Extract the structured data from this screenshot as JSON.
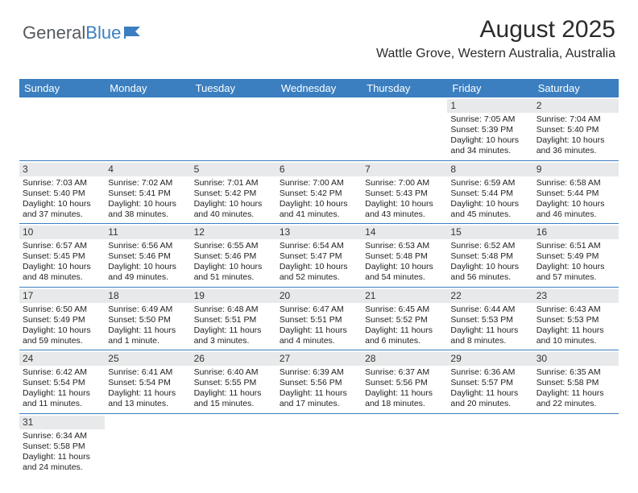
{
  "logo": {
    "part1": "General",
    "part2": "Blue"
  },
  "title": "August 2025",
  "location": "Wattle Grove, Western Australia, Australia",
  "colors": {
    "header_bar": "#3b7fc0",
    "daynum_band": "#e8e9ea",
    "row_divider": "#3b7fc0",
    "text": "#222222",
    "logo_gray": "#555b60",
    "logo_blue": "#3b7fc0",
    "background": "#ffffff"
  },
  "typography": {
    "title_size_pt": 22,
    "location_size_pt": 12,
    "dayhead_size_pt": 10,
    "cell_size_pt": 8
  },
  "day_headers": [
    "Sunday",
    "Monday",
    "Tuesday",
    "Wednesday",
    "Thursday",
    "Friday",
    "Saturday"
  ],
  "weeks": [
    [
      {
        "n": "",
        "sr": "",
        "ss": "",
        "dl1": "",
        "dl2": ""
      },
      {
        "n": "",
        "sr": "",
        "ss": "",
        "dl1": "",
        "dl2": ""
      },
      {
        "n": "",
        "sr": "",
        "ss": "",
        "dl1": "",
        "dl2": ""
      },
      {
        "n": "",
        "sr": "",
        "ss": "",
        "dl1": "",
        "dl2": ""
      },
      {
        "n": "",
        "sr": "",
        "ss": "",
        "dl1": "",
        "dl2": ""
      },
      {
        "n": "1",
        "sr": "Sunrise: 7:05 AM",
        "ss": "Sunset: 5:39 PM",
        "dl1": "Daylight: 10 hours",
        "dl2": "and 34 minutes."
      },
      {
        "n": "2",
        "sr": "Sunrise: 7:04 AM",
        "ss": "Sunset: 5:40 PM",
        "dl1": "Daylight: 10 hours",
        "dl2": "and 36 minutes."
      }
    ],
    [
      {
        "n": "3",
        "sr": "Sunrise: 7:03 AM",
        "ss": "Sunset: 5:40 PM",
        "dl1": "Daylight: 10 hours",
        "dl2": "and 37 minutes."
      },
      {
        "n": "4",
        "sr": "Sunrise: 7:02 AM",
        "ss": "Sunset: 5:41 PM",
        "dl1": "Daylight: 10 hours",
        "dl2": "and 38 minutes."
      },
      {
        "n": "5",
        "sr": "Sunrise: 7:01 AM",
        "ss": "Sunset: 5:42 PM",
        "dl1": "Daylight: 10 hours",
        "dl2": "and 40 minutes."
      },
      {
        "n": "6",
        "sr": "Sunrise: 7:00 AM",
        "ss": "Sunset: 5:42 PM",
        "dl1": "Daylight: 10 hours",
        "dl2": "and 41 minutes."
      },
      {
        "n": "7",
        "sr": "Sunrise: 7:00 AM",
        "ss": "Sunset: 5:43 PM",
        "dl1": "Daylight: 10 hours",
        "dl2": "and 43 minutes."
      },
      {
        "n": "8",
        "sr": "Sunrise: 6:59 AM",
        "ss": "Sunset: 5:44 PM",
        "dl1": "Daylight: 10 hours",
        "dl2": "and 45 minutes."
      },
      {
        "n": "9",
        "sr": "Sunrise: 6:58 AM",
        "ss": "Sunset: 5:44 PM",
        "dl1": "Daylight: 10 hours",
        "dl2": "and 46 minutes."
      }
    ],
    [
      {
        "n": "10",
        "sr": "Sunrise: 6:57 AM",
        "ss": "Sunset: 5:45 PM",
        "dl1": "Daylight: 10 hours",
        "dl2": "and 48 minutes."
      },
      {
        "n": "11",
        "sr": "Sunrise: 6:56 AM",
        "ss": "Sunset: 5:46 PM",
        "dl1": "Daylight: 10 hours",
        "dl2": "and 49 minutes."
      },
      {
        "n": "12",
        "sr": "Sunrise: 6:55 AM",
        "ss": "Sunset: 5:46 PM",
        "dl1": "Daylight: 10 hours",
        "dl2": "and 51 minutes."
      },
      {
        "n": "13",
        "sr": "Sunrise: 6:54 AM",
        "ss": "Sunset: 5:47 PM",
        "dl1": "Daylight: 10 hours",
        "dl2": "and 52 minutes."
      },
      {
        "n": "14",
        "sr": "Sunrise: 6:53 AM",
        "ss": "Sunset: 5:48 PM",
        "dl1": "Daylight: 10 hours",
        "dl2": "and 54 minutes."
      },
      {
        "n": "15",
        "sr": "Sunrise: 6:52 AM",
        "ss": "Sunset: 5:48 PM",
        "dl1": "Daylight: 10 hours",
        "dl2": "and 56 minutes."
      },
      {
        "n": "16",
        "sr": "Sunrise: 6:51 AM",
        "ss": "Sunset: 5:49 PM",
        "dl1": "Daylight: 10 hours",
        "dl2": "and 57 minutes."
      }
    ],
    [
      {
        "n": "17",
        "sr": "Sunrise: 6:50 AM",
        "ss": "Sunset: 5:49 PM",
        "dl1": "Daylight: 10 hours",
        "dl2": "and 59 minutes."
      },
      {
        "n": "18",
        "sr": "Sunrise: 6:49 AM",
        "ss": "Sunset: 5:50 PM",
        "dl1": "Daylight: 11 hours",
        "dl2": "and 1 minute."
      },
      {
        "n": "19",
        "sr": "Sunrise: 6:48 AM",
        "ss": "Sunset: 5:51 PM",
        "dl1": "Daylight: 11 hours",
        "dl2": "and 3 minutes."
      },
      {
        "n": "20",
        "sr": "Sunrise: 6:47 AM",
        "ss": "Sunset: 5:51 PM",
        "dl1": "Daylight: 11 hours",
        "dl2": "and 4 minutes."
      },
      {
        "n": "21",
        "sr": "Sunrise: 6:45 AM",
        "ss": "Sunset: 5:52 PM",
        "dl1": "Daylight: 11 hours",
        "dl2": "and 6 minutes."
      },
      {
        "n": "22",
        "sr": "Sunrise: 6:44 AM",
        "ss": "Sunset: 5:53 PM",
        "dl1": "Daylight: 11 hours",
        "dl2": "and 8 minutes."
      },
      {
        "n": "23",
        "sr": "Sunrise: 6:43 AM",
        "ss": "Sunset: 5:53 PM",
        "dl1": "Daylight: 11 hours",
        "dl2": "and 10 minutes."
      }
    ],
    [
      {
        "n": "24",
        "sr": "Sunrise: 6:42 AM",
        "ss": "Sunset: 5:54 PM",
        "dl1": "Daylight: 11 hours",
        "dl2": "and 11 minutes."
      },
      {
        "n": "25",
        "sr": "Sunrise: 6:41 AM",
        "ss": "Sunset: 5:54 PM",
        "dl1": "Daylight: 11 hours",
        "dl2": "and 13 minutes."
      },
      {
        "n": "26",
        "sr": "Sunrise: 6:40 AM",
        "ss": "Sunset: 5:55 PM",
        "dl1": "Daylight: 11 hours",
        "dl2": "and 15 minutes."
      },
      {
        "n": "27",
        "sr": "Sunrise: 6:39 AM",
        "ss": "Sunset: 5:56 PM",
        "dl1": "Daylight: 11 hours",
        "dl2": "and 17 minutes."
      },
      {
        "n": "28",
        "sr": "Sunrise: 6:37 AM",
        "ss": "Sunset: 5:56 PM",
        "dl1": "Daylight: 11 hours",
        "dl2": "and 18 minutes."
      },
      {
        "n": "29",
        "sr": "Sunrise: 6:36 AM",
        "ss": "Sunset: 5:57 PM",
        "dl1": "Daylight: 11 hours",
        "dl2": "and 20 minutes."
      },
      {
        "n": "30",
        "sr": "Sunrise: 6:35 AM",
        "ss": "Sunset: 5:58 PM",
        "dl1": "Daylight: 11 hours",
        "dl2": "and 22 minutes."
      }
    ],
    [
      {
        "n": "31",
        "sr": "Sunrise: 6:34 AM",
        "ss": "Sunset: 5:58 PM",
        "dl1": "Daylight: 11 hours",
        "dl2": "and 24 minutes."
      },
      {
        "n": "",
        "sr": "",
        "ss": "",
        "dl1": "",
        "dl2": ""
      },
      {
        "n": "",
        "sr": "",
        "ss": "",
        "dl1": "",
        "dl2": ""
      },
      {
        "n": "",
        "sr": "",
        "ss": "",
        "dl1": "",
        "dl2": ""
      },
      {
        "n": "",
        "sr": "",
        "ss": "",
        "dl1": "",
        "dl2": ""
      },
      {
        "n": "",
        "sr": "",
        "ss": "",
        "dl1": "",
        "dl2": ""
      },
      {
        "n": "",
        "sr": "",
        "ss": "",
        "dl1": "",
        "dl2": ""
      }
    ]
  ]
}
